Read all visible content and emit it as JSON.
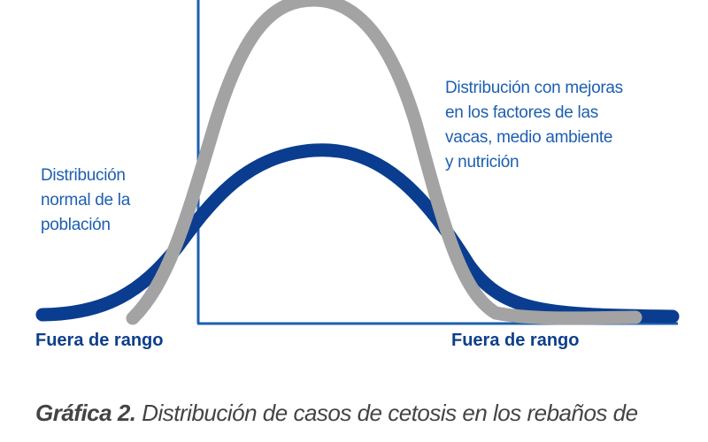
{
  "left_note": {
    "lines": [
      "Distribución",
      "normal de la",
      "población"
    ]
  },
  "right_note": {
    "lines": [
      "Distribución con mejoras",
      "en los factores de las",
      "vacas, medio ambiente",
      "y nutrición"
    ]
  },
  "left_range": "Fuera de rango",
  "right_range": "Fuera de rango",
  "caption": {
    "label": "Gráfica 2.",
    "text": "Distribución de casos de cetosis en los rebaños de"
  }
}
